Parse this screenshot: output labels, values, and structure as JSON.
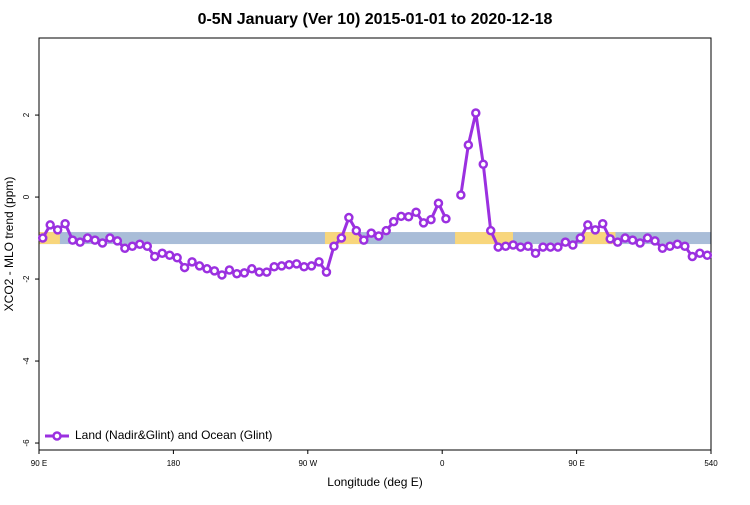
{
  "chart_data": {
    "type": "line",
    "title": "0-5N January (Ver 10)   2015-01-01 to 2020-12-18",
    "xlabel": "Longitude (deg E)",
    "ylabel": "XCO2 - MLO trend (ppm)",
    "xlim": [
      90,
      540
    ],
    "ylim": [
      -6.17,
      3.88
    ],
    "xticks": [
      {
        "value": 90,
        "label": "90 E"
      },
      180,
      {
        "value": 270,
        "label": "90 W"
      },
      {
        "value": 360,
        "label": "0"
      },
      {
        "value": 450,
        "label": "90 E"
      },
      540
    ],
    "yticks": [
      -6,
      -4,
      -2,
      0,
      2
    ],
    "legend": "bottom-left",
    "band": {
      "y": -1,
      "segments": [
        {
          "x": [
            90,
            540
          ],
          "color": "#a9bdd8"
        },
        {
          "x": [
            90,
            104
          ],
          "color": "#f8d67c"
        },
        {
          "x": [
            281.5,
            305
          ],
          "color": "#f8d67c"
        },
        {
          "x": [
            368.6,
            407.4
          ],
          "color": "#f8d67c"
        },
        {
          "x": [
            454,
            476
          ],
          "color": "#f8d67c"
        }
      ]
    },
    "x": [
      92.5,
      97.5,
      102.5,
      107.5,
      112.5,
      117.5,
      122.5,
      127.5,
      132.5,
      137.5,
      142.5,
      147.5,
      152.5,
      157.5,
      162.5,
      167.5,
      172.5,
      177.5,
      182.5,
      187.5,
      192.5,
      197.5,
      202.5,
      207.5,
      212.5,
      217.5,
      222.5,
      227.5,
      232.5,
      237.5,
      242.5,
      247.5,
      252.5,
      257.5,
      262.5,
      267.5,
      272.5,
      277.5,
      282.5,
      287.5,
      292.5,
      297.5,
      302.5,
      307.5,
      312.5,
      317.5,
      322.5,
      327.5,
      332.5,
      337.5,
      342.5,
      347.5,
      352.5,
      357.5,
      362.5,
      367.5,
      372.5,
      377.5,
      382.5,
      387.5,
      392.5,
      397.5,
      402.5,
      407.5,
      412.5,
      417.5,
      422.5,
      427.5,
      432.5,
      437.5,
      442.5,
      447.5,
      452.5,
      457.5,
      462.5,
      467.5,
      472.5,
      477.5,
      482.5,
      487.5,
      492.5,
      497.5,
      502.5,
      507.5,
      512.5,
      517.5,
      522.5,
      527.5,
      532.5,
      537.5
    ],
    "series": [
      {
        "name": "Land (Nadir&Glint) and Ocean (Glint)",
        "color": "#9b30e0",
        "values": [
          -1.0,
          -0.68,
          -0.8,
          -0.65,
          -1.05,
          -1.1,
          -1.0,
          -1.05,
          -1.12,
          -1.0,
          -1.07,
          -1.25,
          -1.2,
          -1.15,
          -1.2,
          -1.45,
          -1.37,
          -1.42,
          -1.48,
          -1.72,
          -1.58,
          -1.68,
          -1.75,
          -1.8,
          -1.9,
          -1.78,
          -1.87,
          -1.85,
          -1.75,
          -1.83,
          -1.83,
          -1.7,
          -1.68,
          -1.65,
          -1.63,
          -1.7,
          -1.68,
          -1.58,
          -1.83,
          -1.2,
          -1.0,
          -0.5,
          -0.82,
          -1.05,
          -0.88,
          -0.95,
          -0.82,
          -0.6,
          -0.47,
          -0.48,
          -0.37,
          -0.63,
          -0.55,
          -0.15,
          -0.53,
          null,
          0.05,
          1.27,
          2.05,
          0.8,
          -0.82,
          -1.22,
          -1.2,
          -1.17,
          -1.22,
          -1.2,
          -1.37,
          -1.22,
          -1.22,
          -1.22,
          -1.1,
          -1.17,
          -1.0,
          -0.68,
          -0.8,
          -0.65,
          -1.02,
          -1.1,
          -1.0,
          -1.05,
          -1.12,
          -1.0,
          -1.07,
          -1.25,
          -1.2,
          -1.15,
          -1.2,
          -1.45,
          -1.37,
          -1.42
        ]
      }
    ]
  }
}
